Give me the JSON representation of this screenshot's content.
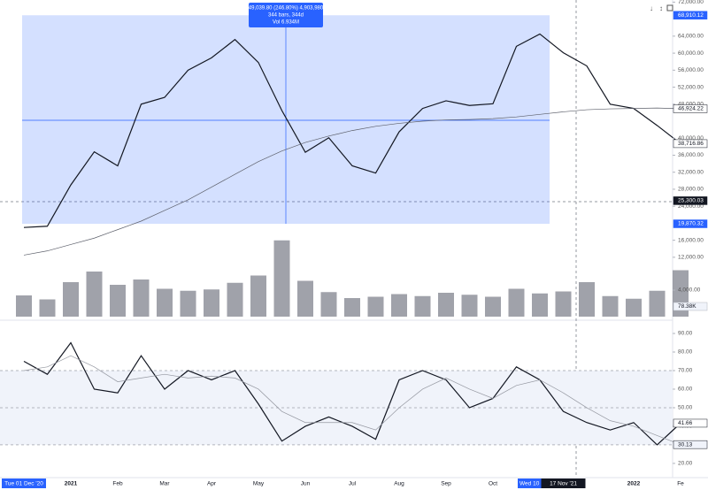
{
  "chart_data": [
    {
      "type": "line",
      "categories": [
        "Tue 01 Dec '20",
        null,
        "2021",
        null,
        "Feb",
        null,
        "Mar",
        null,
        "Apr",
        null,
        "May",
        null,
        "Jun",
        null,
        "Jul",
        null,
        "Aug",
        null,
        "Sep",
        null,
        "Oct",
        null,
        "Wed 10 Nov '21",
        "17 Nov '21",
        null,
        null,
        "2022",
        null,
        "Fe"
      ],
      "series": [
        {
          "color": "#131722",
          "values": [
            19000,
            19300,
            29000,
            36800,
            33500,
            48000,
            49600,
            56000,
            58900,
            63200,
            57800,
            46500,
            36700,
            40100,
            33500,
            31800,
            41500,
            47000,
            48800,
            47700,
            48100,
            61600,
            64500,
            60100,
            57000,
            48000,
            47000,
            43000,
            38716.86
          ]
        },
        {
          "color": "#5d606b",
          "values": [
            12500,
            13500,
            15000,
            16500,
            18500,
            20500,
            23000,
            25500,
            28500,
            31500,
            34500,
            37000,
            39000,
            40500,
            41800,
            42800,
            43500,
            44000,
            44300,
            44400,
            44600,
            45000,
            45600,
            46200,
            46700,
            46900,
            47000,
            47100,
            46924.22
          ]
        }
      ],
      "ylim": [
        10100,
        72500
      ],
      "yticks": [
        {
          "value": 12000,
          "label": "12,000.00"
        },
        {
          "value": 16000,
          "label": "16,000.00"
        },
        {
          "value": 24000,
          "label": "24,000.00"
        },
        {
          "value": 28000,
          "label": "28,000.00"
        },
        {
          "value": 32000,
          "label": "32,000.00"
        },
        {
          "value": 36000,
          "label": "36,000.00"
        },
        {
          "value": 40000,
          "label": "40,000.00"
        },
        {
          "value": 48000,
          "label": "48,000.00"
        },
        {
          "value": 52000,
          "label": "52,000.00"
        },
        {
          "value": 56000,
          "label": "56,000.00"
        },
        {
          "value": 60000,
          "label": "60,000.00"
        },
        {
          "value": 64000,
          "label": "64,000.00"
        },
        {
          "value": 72000,
          "label": "72,000.00"
        }
      ],
      "highlight_ticks": [
        {
          "value": 68910.12,
          "label": "68,910.12",
          "color": "#2962ff"
        },
        {
          "value": 46924.22,
          "label": "46,924.22",
          "color": "#ffffff"
        },
        {
          "value": 38716.86,
          "label": "38,716.86",
          "color": "#ffffff"
        },
        {
          "value": 25300.03,
          "label": "25,300.03",
          "color": "#131722"
        },
        {
          "value": 19870.32,
          "label": "19,870.32",
          "color": "#2962ff"
        }
      ],
      "measure": {
        "range": [
          19870.32,
          68910.12
        ],
        "lines": [
          "49,039.80 (246.80%) 4,903,980",
          "344 bars, 344d",
          "Vol 6.934M"
        ]
      }
    },
    {
      "type": "bar",
      "color": "#787b86",
      "values": [
        3200,
        2600,
        5200,
        6800,
        4800,
        5600,
        4200,
        3900,
        4100,
        5100,
        6200,
        11500,
        5400,
        3700,
        2800,
        3000,
        3400,
        3100,
        3600,
        3300,
        3000,
        4200,
        3500,
        3800,
        5200,
        3100,
        2700,
        3900,
        7000
      ],
      "ylim": [
        0,
        12000
      ],
      "yticks": [
        {
          "value": 4000,
          "label": "4,000.00"
        }
      ],
      "annotation": "78.38K"
    },
    {
      "type": "line",
      "series": [
        {
          "color": "#131722",
          "values": [
            75,
            68,
            85,
            60,
            58,
            78,
            60,
            70,
            65,
            70,
            52,
            32,
            40,
            45,
            40,
            33,
            65,
            70,
            65,
            50,
            55,
            72,
            65,
            48,
            42,
            38,
            42,
            30,
            41.66
          ]
        },
        {
          "color": "#9598a1",
          "values": [
            70,
            72,
            78,
            72,
            64,
            66,
            68,
            66,
            67,
            66,
            60,
            48,
            42,
            42,
            42,
            38,
            50,
            60,
            66,
            60,
            55,
            62,
            65,
            58,
            50,
            43,
            40,
            35,
            30.13
          ]
        }
      ],
      "ylim": [
        17.1,
        94.3
      ],
      "yticks": [
        {
          "value": 20,
          "label": "20.00"
        },
        {
          "value": 40,
          "label": "40.00"
        },
        {
          "value": 50,
          "label": "50.00"
        },
        {
          "value": 60,
          "label": "60.00"
        },
        {
          "value": 70,
          "label": "70.00"
        },
        {
          "value": 80,
          "label": "80.00"
        },
        {
          "value": 90,
          "label": "90.00"
        }
      ],
      "band": [
        30,
        70
      ],
      "levels": [
        30,
        50,
        70
      ],
      "highlight_ticks": [
        {
          "value": 41.66,
          "label": "41.66",
          "color": "#ffffff"
        },
        {
          "value": 30.13,
          "label": "30.13",
          "color": "#f0f3fa"
        }
      ]
    }
  ]
}
